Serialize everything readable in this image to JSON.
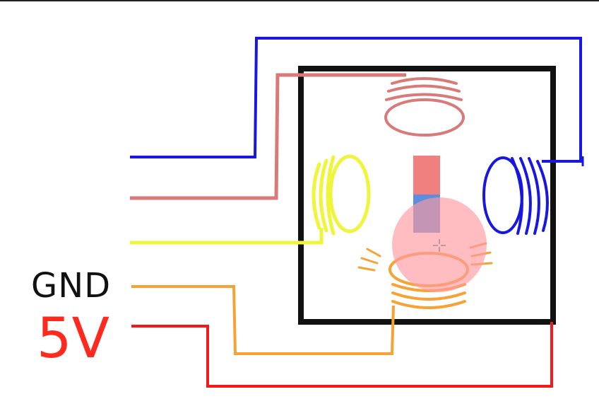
{
  "labels": {
    "gnd": "GND",
    "v5": "5V"
  },
  "colors": {
    "background": "#ffffff",
    "housing": "#111111",
    "wire_blue": "#1717e0",
    "wire_pink": "#d97a7a",
    "wire_yellow": "#eef53a",
    "wire_orange": "#f7a234",
    "wire_red": "#f21a1a",
    "magnet_north": "#f08080",
    "magnet_south": "#5b8de0",
    "rotor_overlay": "#ff9aa0"
  },
  "icons": {
    "cursor": "crosshair-cursor-icon"
  }
}
